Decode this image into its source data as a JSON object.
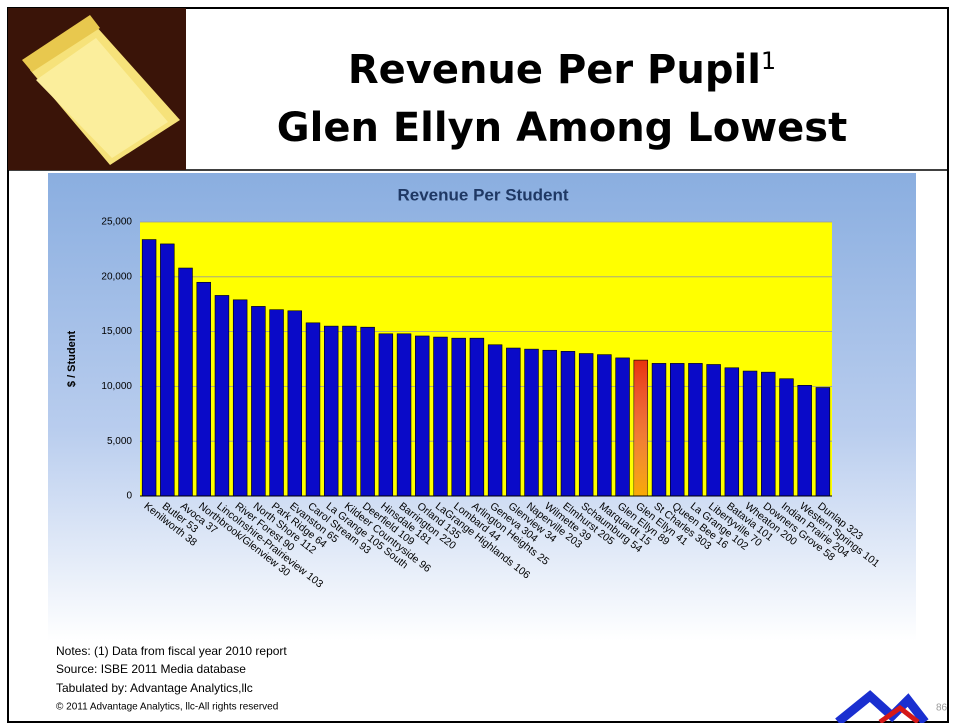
{
  "slide": {
    "title_line1": "Revenue Per Pupil",
    "title_superscript": "1",
    "title_line2": "Glen Ellyn Among Lowest",
    "notes": [
      "Notes: (1) Data from fiscal year 2010 report",
      "Source: ISBE 2011 Media database",
      "Tabulated by: Advantage Analytics,llc"
    ],
    "copyright": "© 2011 Advantage Analytics, llc-All rights reserved",
    "page_number": "86"
  },
  "chart_data": {
    "type": "bar",
    "title": "Revenue Per Student",
    "y_label": "$ / Student",
    "categories": [
      "Kenilworth 38",
      "Butler 53",
      "Avoca 37",
      "Northbrook/Glenview 30",
      "Lincolnshire-Prairieview 103",
      "River Forest 90",
      "North Shore 112",
      "Park Ridge 64",
      "Evanston 65",
      "Carol Stream 93",
      "La Grange 105 South",
      "Kildeer Countryside 96",
      "Deerfield 109",
      "Hinsdale 181",
      "Barrington 220",
      "Orland 135",
      "LaGrange Highlands 106",
      "Lombard 44",
      "Arlington Heights 25",
      "Geneva 304",
      "Glenview 34",
      "Naperville 203",
      "Wilmette 39",
      "Elmhurst 205",
      "Schaumburg 54",
      "Marquardt 15",
      "Glen Ellyn 89",
      "Glen Ellyn 41",
      "St Charles 303",
      "Queen Bee 16",
      "La Grange 102",
      "Libertyville 70",
      "Batavia 101",
      "Wheaton 200",
      "Downers Grove 58",
      "Indian Prairie 204",
      "Western Springs 101",
      "Dunlap 323"
    ],
    "values": [
      23400,
      23000,
      20800,
      19500,
      18300,
      17900,
      17300,
      17000,
      16900,
      15800,
      15500,
      15500,
      15400,
      14800,
      14800,
      14600,
      14500,
      14400,
      14400,
      13800,
      13500,
      13400,
      13300,
      13200,
      13000,
      12900,
      12600,
      12400,
      12100,
      12100,
      12100,
      12000,
      11700,
      11400,
      11300,
      10700,
      10100,
      9900
    ],
    "color": "#0a0ac8",
    "highlight": {
      "category": "Glen Ellyn 41",
      "color": "#e8340c"
    },
    "plot_background": "#ffff00",
    "ylim": [
      0,
      25000
    ],
    "yticks": [
      0,
      {
        "value": 5000,
        "label": "5,000"
      },
      {
        "value": 10000,
        "label": "10,000"
      },
      {
        "value": 15000,
        "label": "15,000"
      },
      {
        "value": 20000,
        "label": "20,000"
      },
      {
        "value": 25000,
        "label": "25,000"
      }
    ],
    "grid": true
  }
}
